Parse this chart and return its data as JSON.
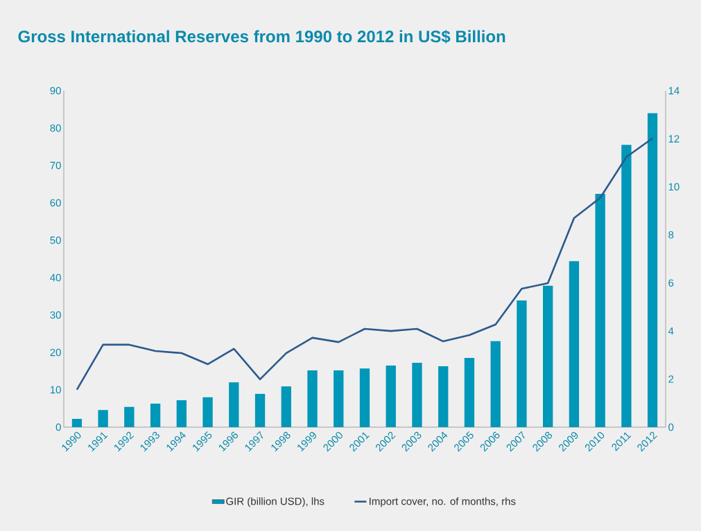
{
  "chart_data": {
    "type": "bar",
    "title": "Gross International Reserves from 1990 to 2012 in US$ Billion",
    "categories": [
      "1990",
      "1991",
      "1992",
      "1993",
      "1994",
      "1995",
      "1996",
      "1997",
      "1998",
      "1999",
      "2000",
      "2001",
      "2002",
      "2003",
      "2004",
      "2005",
      "2006",
      "2007",
      "2008",
      "2009",
      "2010",
      "2011",
      "2012"
    ],
    "series": [
      {
        "name": "GIR (billion USD), lhs",
        "color": "#0097b9",
        "values": [
          2.2,
          4.6,
          5.4,
          6.3,
          7.2,
          8.0,
          12.0,
          8.9,
          10.9,
          15.2,
          15.2,
          15.7,
          16.5,
          17.2,
          16.3,
          18.5,
          23.0,
          33.9,
          37.8,
          44.4,
          62.4,
          75.5,
          84.0
        ]
      },
      {
        "name": "Import cover, no. of months, rhs",
        "type": "line",
        "axis": "y2",
        "color": "#2b5a8c",
        "values": [
          1.56,
          3.43,
          3.43,
          3.17,
          3.08,
          2.62,
          3.26,
          1.99,
          3.08,
          3.72,
          3.54,
          4.09,
          4.0,
          4.09,
          3.57,
          3.83,
          4.27,
          5.76,
          5.99,
          8.7,
          9.54,
          11.24,
          12.02
        ]
      }
    ],
    "ylim": [
      0,
      90
    ],
    "yticks": [
      0,
      10,
      20,
      30,
      40,
      50,
      60,
      70,
      80,
      90
    ],
    "y2lim": [
      0,
      14
    ],
    "y2ticks": [
      0,
      2,
      4,
      6,
      8,
      10,
      12,
      14
    ],
    "grid": false,
    "legend": "bottom",
    "marker": "none",
    "line_style": "solid"
  }
}
